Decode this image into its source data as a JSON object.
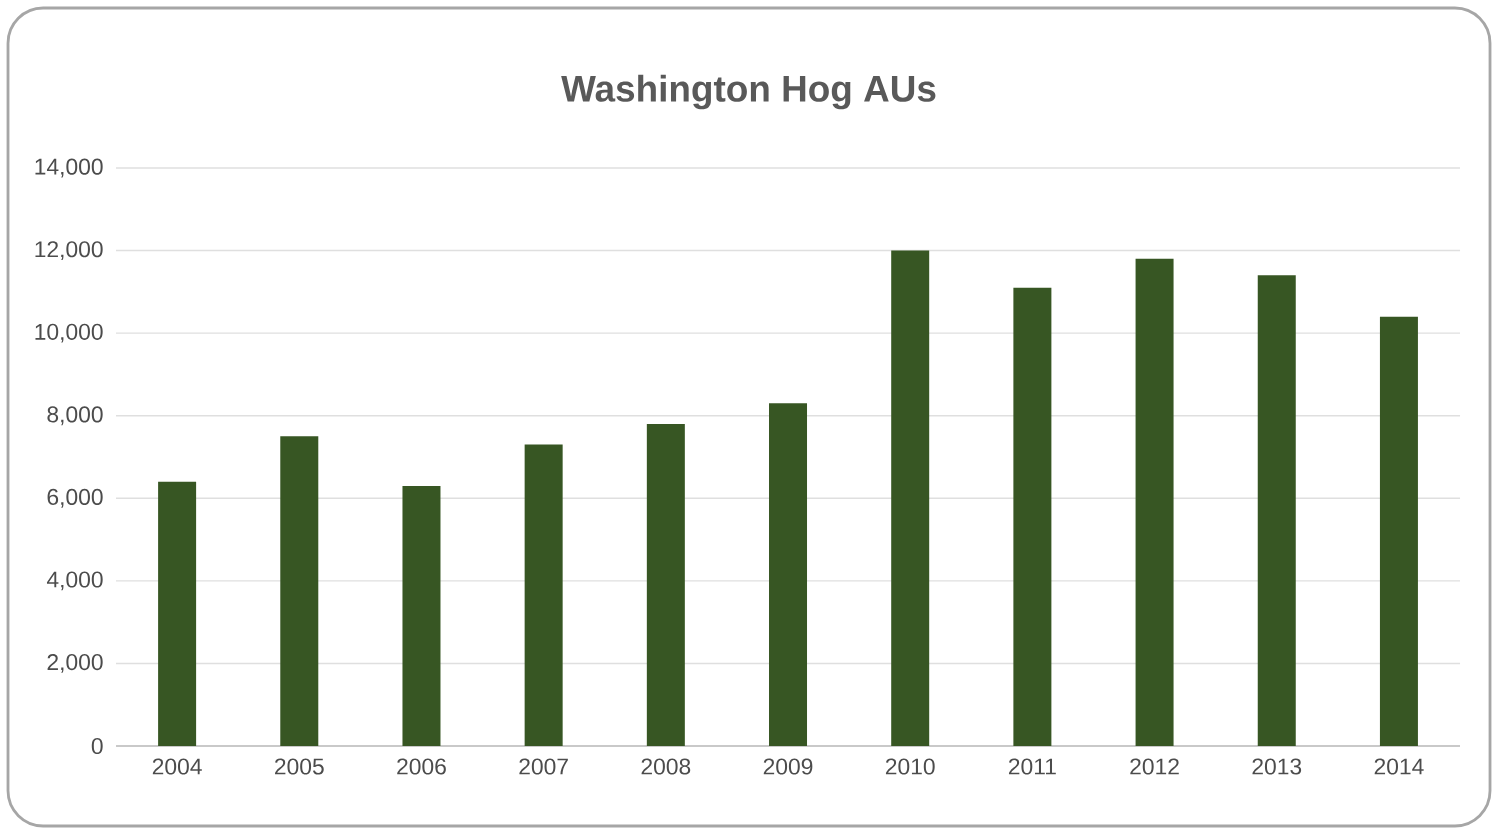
{
  "chart_data": {
    "type": "bar",
    "title": "Washington Hog AUs",
    "categories": [
      "2004",
      "2005",
      "2006",
      "2007",
      "2008",
      "2009",
      "2010",
      "2011",
      "2012",
      "2013",
      "2014"
    ],
    "values": [
      6400,
      7500,
      6300,
      7300,
      7800,
      8300,
      12000,
      11100,
      11800,
      11400,
      10400
    ],
    "color": "#375623",
    "ylim": [
      0,
      14000
    ],
    "yticks": [
      0,
      {
        "value": 2000,
        "label": "2,000"
      },
      {
        "value": 4000,
        "label": "4,000"
      },
      {
        "value": 6000,
        "label": "6,000"
      },
      {
        "value": 8000,
        "label": "8,000"
      },
      {
        "value": 10000,
        "label": "10,000"
      },
      {
        "value": 12000,
        "label": "12,000"
      },
      {
        "value": 14000,
        "label": "14,000"
      }
    ],
    "grid": "y"
  }
}
